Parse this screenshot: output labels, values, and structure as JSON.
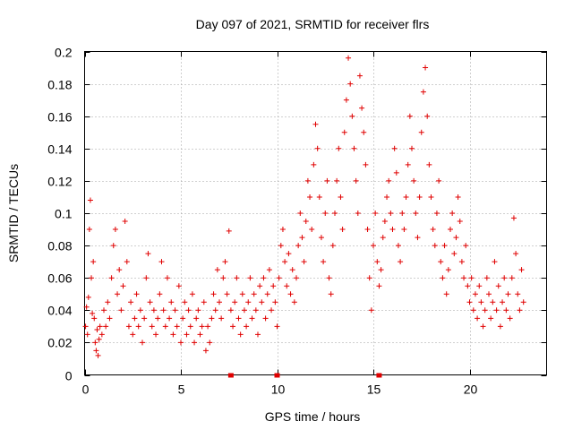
{
  "chart_data": {
    "type": "scatter",
    "title": "Day 097 of 2021, SRMTID for receiver flrs",
    "xlabel": "GPS time / hours",
    "ylabel": "SRMTID / TECUs",
    "xlim": [
      0,
      24
    ],
    "ylim": [
      0,
      0.2
    ],
    "xticks": [
      0,
      5,
      10,
      15,
      20
    ],
    "xtick_labels": [
      "0",
      "5",
      "10",
      "15",
      "20"
    ],
    "yticks": [
      0,
      0.02,
      0.04,
      0.06,
      0.08,
      0.1,
      0.12,
      0.14,
      0.16,
      0.18,
      0.2
    ],
    "ytick_labels": [
      "0",
      "0.02",
      "0.04",
      "0.06",
      "0.08",
      "0.1",
      "0.12",
      "0.14",
      "0.16",
      "0.18",
      "0.2"
    ],
    "grid": true,
    "marker": "+",
    "color": "#e00000",
    "data_gaps_at_x": [
      7.6,
      10.0,
      15.3
    ],
    "series": [
      {
        "name": "SRMTID",
        "points": [
          [
            0.05,
            0.03
          ],
          [
            0.1,
            0.042
          ],
          [
            0.15,
            0.025
          ],
          [
            0.2,
            0.048
          ],
          [
            0.25,
            0.09
          ],
          [
            0.3,
            0.108
          ],
          [
            0.35,
            0.06
          ],
          [
            0.4,
            0.038
          ],
          [
            0.45,
            0.07
          ],
          [
            0.5,
            0.035
          ],
          [
            0.55,
            0.02
          ],
          [
            0.6,
            0.015
          ],
          [
            0.65,
            0.028
          ],
          [
            0.7,
            0.012
          ],
          [
            0.75,
            0.022
          ],
          [
            0.8,
            0.03
          ],
          [
            0.9,
            0.025
          ],
          [
            1.0,
            0.04
          ],
          [
            1.1,
            0.03
          ],
          [
            1.2,
            0.045
          ],
          [
            1.3,
            0.035
          ],
          [
            1.4,
            0.06
          ],
          [
            1.5,
            0.08
          ],
          [
            1.6,
            0.09
          ],
          [
            1.7,
            0.05
          ],
          [
            1.8,
            0.065
          ],
          [
            1.9,
            0.04
          ],
          [
            2.0,
            0.055
          ],
          [
            2.1,
            0.095
          ],
          [
            2.2,
            0.07
          ],
          [
            2.3,
            0.03
          ],
          [
            2.4,
            0.045
          ],
          [
            2.5,
            0.025
          ],
          [
            2.6,
            0.035
          ],
          [
            2.7,
            0.05
          ],
          [
            2.8,
            0.03
          ],
          [
            2.9,
            0.04
          ],
          [
            3.0,
            0.02
          ],
          [
            3.1,
            0.035
          ],
          [
            3.2,
            0.06
          ],
          [
            3.3,
            0.075
          ],
          [
            3.4,
            0.045
          ],
          [
            3.5,
            0.03
          ],
          [
            3.6,
            0.04
          ],
          [
            3.7,
            0.025
          ],
          [
            3.8,
            0.035
          ],
          [
            3.9,
            0.05
          ],
          [
            4.0,
            0.07
          ],
          [
            4.1,
            0.04
          ],
          [
            4.2,
            0.03
          ],
          [
            4.3,
            0.06
          ],
          [
            4.4,
            0.035
          ],
          [
            4.5,
            0.045
          ],
          [
            4.6,
            0.025
          ],
          [
            4.7,
            0.04
          ],
          [
            4.8,
            0.03
          ],
          [
            4.9,
            0.055
          ],
          [
            5.0,
            0.02
          ],
          [
            5.1,
            0.035
          ],
          [
            5.2,
            0.045
          ],
          [
            5.3,
            0.025
          ],
          [
            5.4,
            0.04
          ],
          [
            5.5,
            0.03
          ],
          [
            5.6,
            0.05
          ],
          [
            5.7,
            0.02
          ],
          [
            5.8,
            0.035
          ],
          [
            5.9,
            0.04
          ],
          [
            6.0,
            0.025
          ],
          [
            6.1,
            0.03
          ],
          [
            6.2,
            0.045
          ],
          [
            6.3,
            0.015
          ],
          [
            6.4,
            0.03
          ],
          [
            6.5,
            0.02
          ],
          [
            6.6,
            0.035
          ],
          [
            6.7,
            0.05
          ],
          [
            6.8,
            0.04
          ],
          [
            6.9,
            0.065
          ],
          [
            7.0,
            0.045
          ],
          [
            7.1,
            0.035
          ],
          [
            7.2,
            0.06
          ],
          [
            7.3,
            0.07
          ],
          [
            7.4,
            0.05
          ],
          [
            7.5,
            0.089
          ],
          [
            7.6,
            0.04
          ],
          [
            7.7,
            0.03
          ],
          [
            7.8,
            0.045
          ],
          [
            7.9,
            0.06
          ],
          [
            8.0,
            0.035
          ],
          [
            8.1,
            0.025
          ],
          [
            8.2,
            0.05
          ],
          [
            8.3,
            0.04
          ],
          [
            8.4,
            0.03
          ],
          [
            8.5,
            0.045
          ],
          [
            8.6,
            0.06
          ],
          [
            8.7,
            0.035
          ],
          [
            8.8,
            0.05
          ],
          [
            8.9,
            0.04
          ],
          [
            9.0,
            0.025
          ],
          [
            9.1,
            0.055
          ],
          [
            9.2,
            0.045
          ],
          [
            9.3,
            0.06
          ],
          [
            9.4,
            0.035
          ],
          [
            9.5,
            0.05
          ],
          [
            9.6,
            0.065
          ],
          [
            9.7,
            0.04
          ],
          [
            9.8,
            0.055
          ],
          [
            9.9,
            0.045
          ],
          [
            10.0,
            0.03
          ],
          [
            10.1,
            0.06
          ],
          [
            10.2,
            0.08
          ],
          [
            10.3,
            0.09
          ],
          [
            10.4,
            0.07
          ],
          [
            10.5,
            0.055
          ],
          [
            10.6,
            0.075
          ],
          [
            10.7,
            0.05
          ],
          [
            10.8,
            0.065
          ],
          [
            10.9,
            0.045
          ],
          [
            11.0,
            0.06
          ],
          [
            11.1,
            0.08
          ],
          [
            11.2,
            0.1
          ],
          [
            11.3,
            0.085
          ],
          [
            11.4,
            0.07
          ],
          [
            11.5,
            0.095
          ],
          [
            11.6,
            0.12
          ],
          [
            11.7,
            0.11
          ],
          [
            11.8,
            0.09
          ],
          [
            11.9,
            0.13
          ],
          [
            12.0,
            0.155
          ],
          [
            12.1,
            0.14
          ],
          [
            12.2,
            0.11
          ],
          [
            12.3,
            0.085
          ],
          [
            12.4,
            0.07
          ],
          [
            12.5,
            0.1
          ],
          [
            12.6,
            0.12
          ],
          [
            12.7,
            0.06
          ],
          [
            12.8,
            0.05
          ],
          [
            12.9,
            0.08
          ],
          [
            13.0,
            0.1
          ],
          [
            13.1,
            0.12
          ],
          [
            13.2,
            0.14
          ],
          [
            13.3,
            0.11
          ],
          [
            13.4,
            0.09
          ],
          [
            13.5,
            0.15
          ],
          [
            13.6,
            0.17
          ],
          [
            13.7,
            0.196
          ],
          [
            13.8,
            0.18
          ],
          [
            13.9,
            0.16
          ],
          [
            14.0,
            0.14
          ],
          [
            14.1,
            0.12
          ],
          [
            14.2,
            0.1
          ],
          [
            14.3,
            0.185
          ],
          [
            14.4,
            0.165
          ],
          [
            14.5,
            0.15
          ],
          [
            14.6,
            0.13
          ],
          [
            14.7,
            0.09
          ],
          [
            14.8,
            0.06
          ],
          [
            14.9,
            0.04
          ],
          [
            15.0,
            0.08
          ],
          [
            15.1,
            0.1
          ],
          [
            15.2,
            0.07
          ],
          [
            15.3,
            0.055
          ],
          [
            15.4,
            0.065
          ],
          [
            15.5,
            0.085
          ],
          [
            15.6,
            0.095
          ],
          [
            15.7,
            0.11
          ],
          [
            15.8,
            0.12
          ],
          [
            15.9,
            0.1
          ],
          [
            16.0,
            0.09
          ],
          [
            16.1,
            0.14
          ],
          [
            16.2,
            0.125
          ],
          [
            16.3,
            0.08
          ],
          [
            16.4,
            0.07
          ],
          [
            16.5,
            0.1
          ],
          [
            16.6,
            0.09
          ],
          [
            16.7,
            0.11
          ],
          [
            16.8,
            0.13
          ],
          [
            16.9,
            0.16
          ],
          [
            17.0,
            0.14
          ],
          [
            17.1,
            0.12
          ],
          [
            17.2,
            0.1
          ],
          [
            17.3,
            0.085
          ],
          [
            17.4,
            0.11
          ],
          [
            17.5,
            0.15
          ],
          [
            17.6,
            0.175
          ],
          [
            17.7,
            0.19
          ],
          [
            17.8,
            0.16
          ],
          [
            17.9,
            0.13
          ],
          [
            18.0,
            0.11
          ],
          [
            18.1,
            0.09
          ],
          [
            18.2,
            0.08
          ],
          [
            18.3,
            0.1
          ],
          [
            18.4,
            0.12
          ],
          [
            18.5,
            0.07
          ],
          [
            18.6,
            0.06
          ],
          [
            18.7,
            0.08
          ],
          [
            18.8,
            0.05
          ],
          [
            18.9,
            0.065
          ],
          [
            19.0,
            0.09
          ],
          [
            19.1,
            0.1
          ],
          [
            19.2,
            0.075
          ],
          [
            19.3,
            0.085
          ],
          [
            19.4,
            0.11
          ],
          [
            19.5,
            0.095
          ],
          [
            19.6,
            0.07
          ],
          [
            19.7,
            0.06
          ],
          [
            19.8,
            0.08
          ],
          [
            19.9,
            0.055
          ],
          [
            20.0,
            0.045
          ],
          [
            20.1,
            0.06
          ],
          [
            20.2,
            0.04
          ],
          [
            20.3,
            0.05
          ],
          [
            20.4,
            0.035
          ],
          [
            20.5,
            0.055
          ],
          [
            20.6,
            0.045
          ],
          [
            20.7,
            0.03
          ],
          [
            20.8,
            0.04
          ],
          [
            20.9,
            0.06
          ],
          [
            21.0,
            0.05
          ],
          [
            21.1,
            0.035
          ],
          [
            21.2,
            0.045
          ],
          [
            21.3,
            0.07
          ],
          [
            21.4,
            0.04
          ],
          [
            21.5,
            0.055
          ],
          [
            21.6,
            0.03
          ],
          [
            21.7,
            0.045
          ],
          [
            21.8,
            0.06
          ],
          [
            21.9,
            0.04
          ],
          [
            22.0,
            0.05
          ],
          [
            22.1,
            0.035
          ],
          [
            22.2,
            0.06
          ],
          [
            22.3,
            0.097
          ],
          [
            22.4,
            0.075
          ],
          [
            22.5,
            0.05
          ],
          [
            22.6,
            0.04
          ],
          [
            22.7,
            0.065
          ],
          [
            22.8,
            0.045
          ]
        ]
      }
    ]
  }
}
